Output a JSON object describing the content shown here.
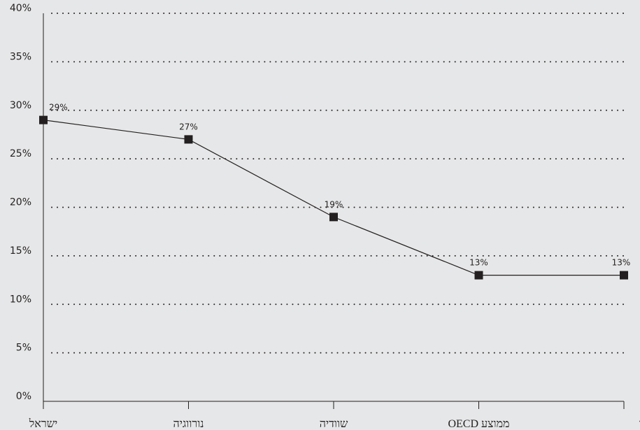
{
  "chart_data": {
    "type": "line",
    "title": "",
    "xlabel": "",
    "ylabel": "",
    "categories": [
      "ישראל",
      "נורווגיה",
      "שוודיה",
      "ממוצע OECD",
      "הולנד"
    ],
    "series": [
      {
        "values": [
          29,
          27,
          19,
          13,
          13
        ]
      }
    ],
    "data_labels": [
      "29%",
      "27%",
      "19%",
      "13%",
      "13%"
    ],
    "y_ticks": [
      "0%",
      "5%",
      "10%",
      "15%",
      "20%",
      "25%",
      "30%",
      "35%",
      "40%"
    ],
    "ylim": [
      0,
      40
    ],
    "grid": true,
    "legend": "none"
  },
  "colors": {
    "background": "#e6e7e8",
    "line": "#231f20",
    "marker": "#231f20",
    "text": "#231f20"
  }
}
